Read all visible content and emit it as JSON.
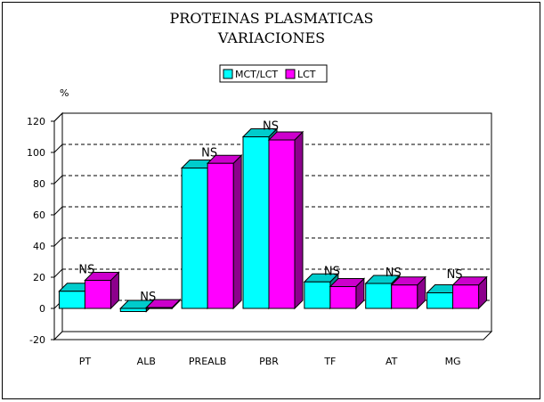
{
  "chart_data": {
    "type": "bar",
    "title": "PROTEINAS PLASMATICAS",
    "subtitle": "VARIACIONES",
    "ylabel": "%",
    "xlabel": "",
    "ylim": [
      -20,
      120
    ],
    "yticks": [
      -20,
      0,
      20,
      40,
      60,
      80,
      100,
      120
    ],
    "grid": true,
    "legend": "top-center",
    "categories": [
      "PT",
      "ALB",
      "PREALB",
      "PBR",
      "TF",
      "AT",
      "MG"
    ],
    "series": [
      {
        "name": "MCT/LCT",
        "color": "#00ffff",
        "values": [
          11,
          -2,
          90,
          110,
          17,
          16,
          10
        ]
      },
      {
        "name": "LCT",
        "color": "#ff00ff",
        "values": [
          18,
          0.5,
          93,
          108,
          14,
          15,
          15
        ]
      }
    ],
    "annotations": [
      "NS",
      "NS",
      "NS",
      "NS",
      "NS",
      "NS",
      "NS"
    ]
  }
}
